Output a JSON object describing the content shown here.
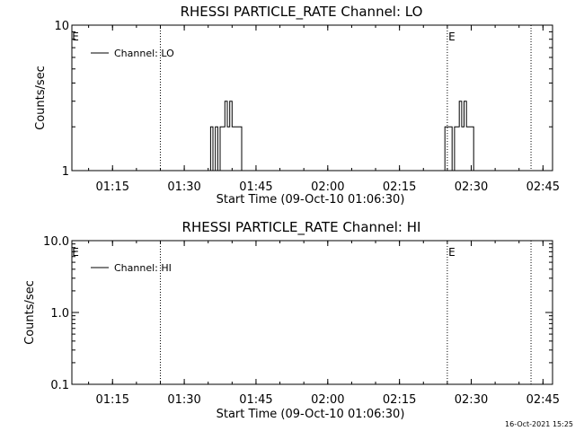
{
  "timestamp": "16-Oct-2021 15:25",
  "chart_data": [
    {
      "type": "line",
      "title": "RHESSI PARTICLE_RATE Channel: LO",
      "xlabel": "Start Time (09-Oct-10 01:06:30)",
      "ylabel": "Counts/sec",
      "yscale": "log",
      "ylim": [
        1,
        10
      ],
      "yticks": [
        "1",
        "10"
      ],
      "xlim": [
        "01:06:30",
        "02:47:00"
      ],
      "xticks": [
        "01:15",
        "01:30",
        "01:45",
        "02:00",
        "02:15",
        "02:30",
        "02:45"
      ],
      "grid": false,
      "legend_position": "top-left",
      "markers": [
        {
          "time": "01:25:00",
          "label": "E"
        },
        {
          "time": "02:25:00",
          "label": "E"
        },
        {
          "time": "02:42:30",
          "label": ""
        }
      ],
      "series": [
        {
          "name": "Channel: LO",
          "x": [
            "01:35:00",
            "01:35:30",
            "01:36:00",
            "01:36:30",
            "01:37:00",
            "01:37:30",
            "01:38:00",
            "01:38:30",
            "01:39:00",
            "01:39:30",
            "01:40:00",
            "01:40:30",
            "01:41:00",
            "01:41:30",
            "01:42:00",
            "01:42:30",
            "01:43:00",
            "02:24:00",
            "02:24:30",
            "02:25:00",
            "02:25:30",
            "02:26:00",
            "02:26:30",
            "02:27:00",
            "02:27:30",
            "02:28:00",
            "02:28:30",
            "02:29:00",
            "02:29:30",
            "02:30:00",
            "02:30:30",
            "02:31:00",
            "02:31:30"
          ],
          "values": [
            1,
            2,
            1,
            2,
            1,
            2,
            2,
            3,
            2,
            3,
            2,
            2,
            2,
            2,
            1,
            1,
            1,
            1,
            2,
            2,
            2,
            1,
            2,
            2,
            3,
            2,
            3,
            2,
            2,
            2,
            1,
            1,
            1
          ]
        }
      ]
    },
    {
      "type": "line",
      "title": "RHESSI PARTICLE_RATE Channel: HI",
      "xlabel": "Start Time (09-Oct-10 01:06:30)",
      "ylabel": "Counts/sec",
      "yscale": "log",
      "ylim": [
        0.1,
        10
      ],
      "yticks": [
        "0.1",
        "1.0",
        "10.0"
      ],
      "xlim": [
        "01:06:30",
        "02:47:00"
      ],
      "xticks": [
        "01:15",
        "01:30",
        "01:45",
        "02:00",
        "02:15",
        "02:30",
        "02:45"
      ],
      "grid": false,
      "legend_position": "top-left",
      "markers": [
        {
          "time": "01:25:00",
          "label": "E"
        },
        {
          "time": "02:25:00",
          "label": "E"
        },
        {
          "time": "02:42:30",
          "label": ""
        }
      ],
      "series": [
        {
          "name": "Channel: HI",
          "x": [],
          "values": []
        }
      ]
    }
  ]
}
